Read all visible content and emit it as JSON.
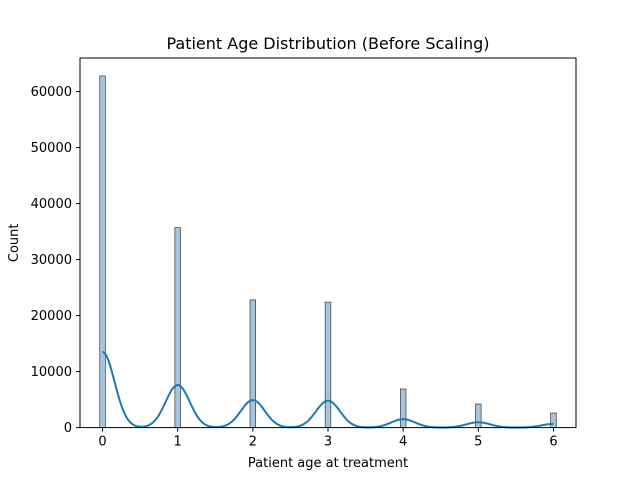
{
  "chart_data": {
    "type": "bar",
    "title": "Patient Age Distribution (Before Scaling)",
    "xlabel": "Patient age at treatment",
    "ylabel": "Count",
    "xlim": [
      -0.3,
      6.3
    ],
    "ylim": [
      0,
      66000
    ],
    "xticks": [
      0,
      1,
      2,
      3,
      4,
      5,
      6
    ],
    "xtick_labels": [
      "0",
      "1",
      "2",
      "3",
      "4",
      "5",
      "6"
    ],
    "yticks": [
      0,
      10000,
      20000,
      30000,
      40000,
      50000,
      60000
    ],
    "ytick_labels": [
      "0",
      "10000",
      "20000",
      "30000",
      "40000",
      "50000",
      "60000"
    ],
    "grid": false,
    "bar_width": 0.075,
    "series": [
      {
        "type": "histogram",
        "x": [
          0,
          1,
          2,
          3,
          4,
          5,
          6
        ],
        "values": [
          62800,
          35700,
          22800,
          22400,
          6900,
          4200,
          2600
        ],
        "color": "#1f77b4",
        "fill_color": "#a6c4dc"
      },
      {
        "type": "kde-line",
        "color": "#1f77b4",
        "peaks": [
          {
            "x": 0,
            "y": 13500
          },
          {
            "x": 1,
            "y": 7600
          },
          {
            "x": 2,
            "y": 4900
          },
          {
            "x": 3,
            "y": 4800
          },
          {
            "x": 4,
            "y": 1500
          },
          {
            "x": 5,
            "y": 950
          },
          {
            "x": 6,
            "y": 650
          }
        ]
      }
    ]
  }
}
